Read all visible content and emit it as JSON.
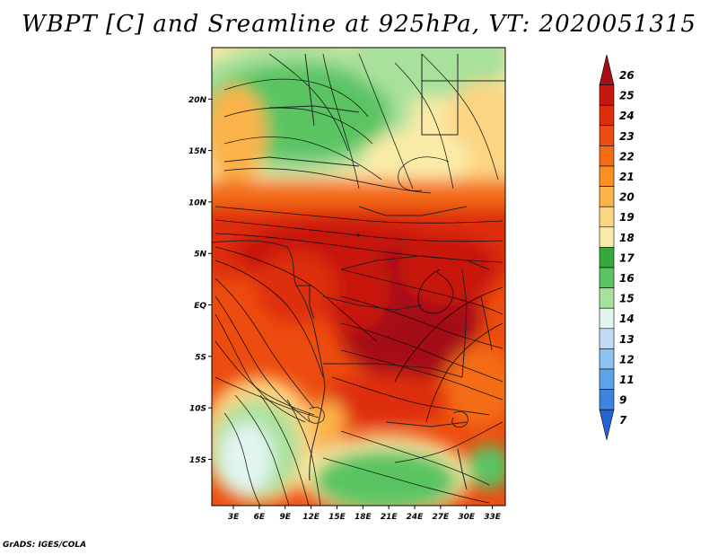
{
  "title": "WBPT [C] and Sreamline at 925hPa, VT: 2020051315",
  "credit": "GrADS: IGES/COLA",
  "map": {
    "lat_labels": [
      "20N",
      "15N",
      "10N",
      "5N",
      "EQ",
      "5S",
      "10S",
      "15S"
    ],
    "lat_values": [
      20,
      15,
      10,
      5,
      0,
      -5,
      -10,
      -15
    ],
    "lon_labels": [
      "3E",
      "6E",
      "9E",
      "12E",
      "15E",
      "18E",
      "21E",
      "24E",
      "27E",
      "30E",
      "33E"
    ],
    "lon_values": [
      3,
      6,
      9,
      12,
      15,
      18,
      21,
      24,
      27,
      30,
      33
    ],
    "lon_range": [
      0.5,
      34.5
    ],
    "lat_range": [
      -19.5,
      25
    ]
  },
  "colorbar": {
    "labels": [
      "26",
      "25",
      "24",
      "23",
      "22",
      "21",
      "20",
      "19",
      "18",
      "17",
      "16",
      "15",
      "14",
      "13",
      "12",
      "11",
      "9",
      "7"
    ],
    "colors": [
      "#a50f15",
      "#c8170e",
      "#de2d0a",
      "#ec4c0f",
      "#f46d14",
      "#f99020",
      "#fbb34a",
      "#fdd481",
      "#fbeba8",
      "#35a93c",
      "#5ac463",
      "#a8e19b",
      "#e2f5f0",
      "#c0dbf4",
      "#8ec2ef",
      "#5ea3ea",
      "#3d84e1",
      "#2266d4"
    ]
  }
}
